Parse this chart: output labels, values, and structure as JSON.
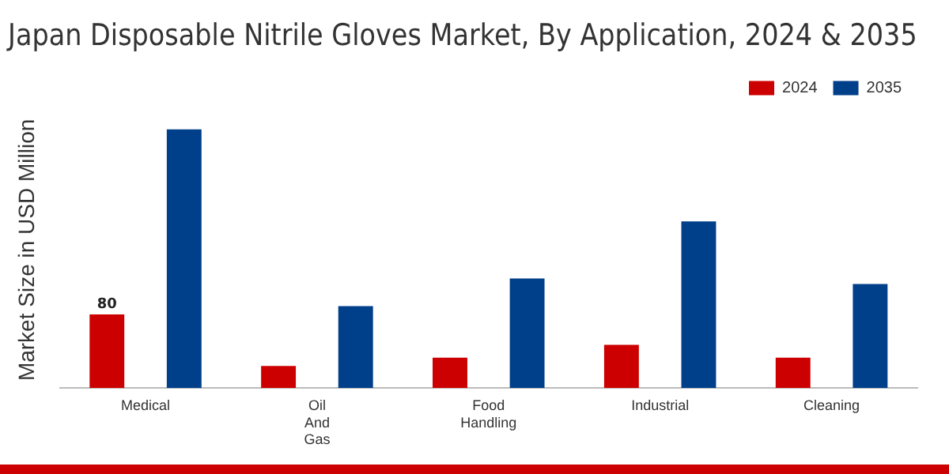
{
  "chart_data": {
    "type": "bar",
    "title": "Japan Disposable Nitrile Gloves Market, By Application, 2024 & 2035",
    "ylabel": "Market Size in USD Million",
    "categories": [
      "Medical",
      "Oil And Gas",
      "Food Handling",
      "Industrial",
      "Cleaning"
    ],
    "series": [
      {
        "name": "2024",
        "color": "#cc0000",
        "values": [
          80,
          24,
          33,
          47,
          33
        ],
        "value_labels": [
          "80",
          null,
          null,
          null,
          null
        ]
      },
      {
        "name": "2035",
        "color": "#003f8a",
        "values": [
          281,
          89,
          119,
          181,
          113
        ]
      }
    ],
    "legend": "top right",
    "grid": false
  }
}
